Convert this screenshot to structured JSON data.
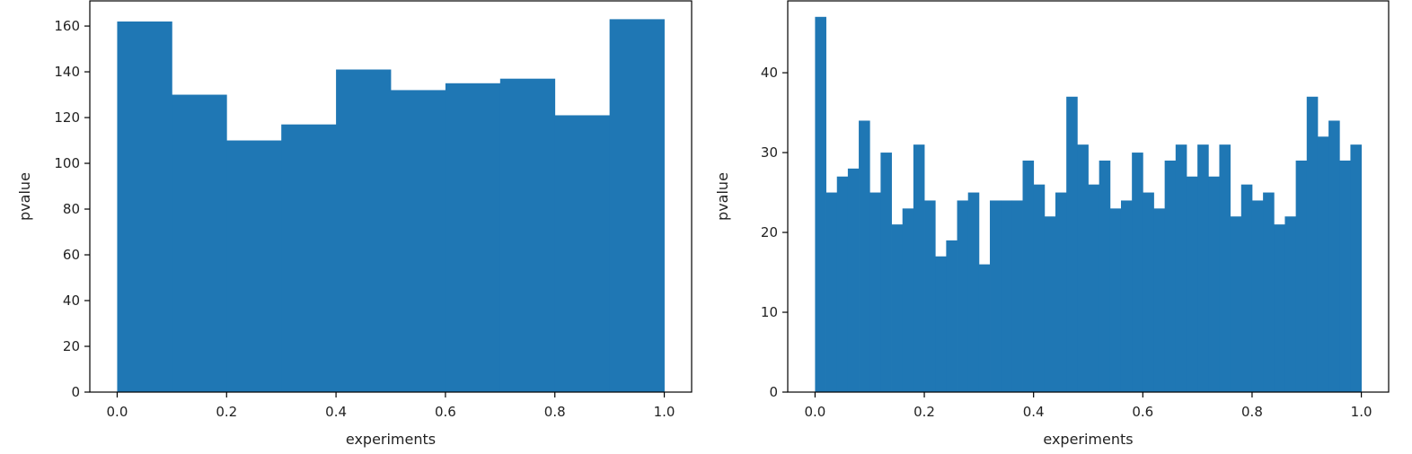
{
  "chart_data": [
    {
      "type": "bar",
      "title": "",
      "xlabel": "experiments",
      "ylabel": "pvalue",
      "xlim": [
        -0.05,
        1.05
      ],
      "ylim": [
        0,
        171
      ],
      "xticks": [
        0.0,
        0.2,
        0.4,
        0.6,
        0.8,
        1.0
      ],
      "yticks": [
        0,
        20,
        40,
        60,
        80,
        100,
        120,
        140,
        160
      ],
      "bar_color": "#1f77b4",
      "bin_edges": [
        0.0,
        0.1,
        0.2,
        0.3,
        0.4,
        0.5,
        0.6,
        0.7,
        0.8,
        0.9,
        1.0
      ],
      "values": [
        162,
        130,
        110,
        117,
        141,
        132,
        135,
        137,
        121,
        163
      ]
    },
    {
      "type": "bar",
      "title": "",
      "xlabel": "experiments",
      "ylabel": "pvalue",
      "xlim": [
        -0.05,
        1.05
      ],
      "ylim": [
        0,
        49
      ],
      "xticks": [
        0.0,
        0.2,
        0.4,
        0.6,
        0.8,
        1.0
      ],
      "yticks": [
        0,
        10,
        20,
        30,
        40
      ],
      "bar_color": "#1f77b4",
      "bin_range": [
        0.0,
        1.0
      ],
      "values": [
        47,
        25,
        27,
        28,
        34,
        25,
        30,
        21,
        23,
        31,
        24,
        17,
        19,
        24,
        25,
        16,
        24,
        24,
        24,
        29,
        26,
        22,
        25,
        37,
        31,
        26,
        29,
        23,
        24,
        30,
        25,
        23,
        29,
        31,
        27,
        31,
        27,
        31,
        22,
        26,
        24,
        25,
        21,
        22,
        29,
        37,
        32,
        34,
        29,
        31
      ]
    }
  ]
}
